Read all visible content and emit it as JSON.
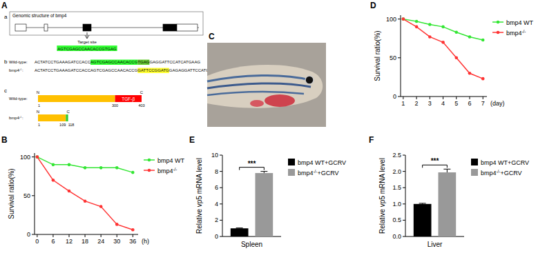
{
  "panel_labels": [
    "A",
    "B",
    "C",
    "D",
    "E",
    "F"
  ],
  "panel_a": {
    "subpanels": [
      "a",
      "b",
      "c"
    ],
    "gene": {
      "title": "Genomic structure of bmp4",
      "target_label": "Target site",
      "target_seq": "AGTCGAGCCAACACCGTGAG"
    },
    "sequences": [
      {
        "label": "Wild-type:",
        "segments": [
          {
            "text": "ACTATCCTGAAAGATCCACC"
          },
          {
            "text": "AGTCGAGCCAACACCG",
            "highlight": "#33ff33"
          },
          {
            "text": "TGAG",
            "highlight": "#66cc33"
          },
          {
            "text": "GAGGATTCCATCATGAAG"
          }
        ]
      },
      {
        "label": "bmp4-/-:",
        "segments": [
          {
            "text": "ACTATCCTGAAAGATCCACCAGTCGAGCCAACACCG"
          },
          {
            "text": "GATTCCGGATG",
            "highlight": "#ffff33"
          },
          {
            "text": "GAGAGGATTCCATCATGAA"
          }
        ]
      }
    ],
    "proteins": [
      {
        "label": "Wild-type:",
        "ends": [
          "N",
          "C"
        ],
        "ticks": [
          1,
          300,
          403
        ],
        "segments": [
          {
            "start": 1,
            "end": 300,
            "color": "#ffc000"
          },
          {
            "start": 300,
            "end": 403,
            "color": "#ff0000",
            "label": "TGF-β"
          }
        ]
      },
      {
        "label": "bmp4-/-:",
        "ends": [
          "N",
          "C"
        ],
        "ticks": [
          1,
          109,
          118
        ],
        "segments": [
          {
            "start": 1,
            "end": 109,
            "color": "#ffc000"
          },
          {
            "start": 109,
            "end": 118,
            "color": "#33cc33"
          }
        ]
      }
    ]
  },
  "chart_data": [
    {
      "type": "line",
      "x": [
        0,
        6,
        12,
        18,
        24,
        30,
        36
      ],
      "xlim": [
        -1,
        38
      ],
      "xticks": [
        0,
        6,
        12,
        18,
        24,
        30,
        36
      ],
      "ylim": [
        0,
        105
      ],
      "yticks": [
        0,
        50,
        100
      ],
      "x_label": "(h)",
      "y_label": "Survival ratio(%)",
      "grid": false,
      "legend": "right",
      "marker": "circle",
      "series": [
        {
          "name": "bmp4 WT",
          "color": "#33e633",
          "values": [
            100,
            90,
            90,
            86,
            86,
            86,
            80
          ]
        },
        {
          "name": "bmp4-/-",
          "color": "#ff3333",
          "values": [
            100,
            70,
            56,
            43,
            36,
            13,
            6
          ]
        }
      ]
    },
    {
      "type": "line",
      "x": [
        1,
        2,
        3,
        4,
        5,
        6,
        7
      ],
      "xlim": [
        0.8,
        7.3
      ],
      "xticks": [
        1,
        2,
        3,
        4,
        5,
        6,
        7
      ],
      "ylim": [
        0,
        105
      ],
      "yticks": [
        0,
        50,
        100
      ],
      "x_label": "(day)",
      "y_label": "Survival ratio(%)",
      "grid": false,
      "legend": "right",
      "marker": "circle",
      "series": [
        {
          "name": "bmp4 WT",
          "color": "#33e633",
          "values": [
            100,
            97,
            93,
            90,
            83,
            77,
            73
          ]
        },
        {
          "name": "bmp4-/-",
          "color": "#ff3333",
          "values": [
            100,
            90,
            77,
            70,
            50,
            30,
            23
          ]
        }
      ]
    },
    {
      "type": "bar",
      "categories": [
        null
      ],
      "x_label": "Spleen",
      "y_label": "Relative vp5 mRNA level",
      "ylim": [
        0,
        10
      ],
      "yticks": [
        0,
        2,
        4,
        6,
        8,
        10
      ],
      "grid": false,
      "legend": "right",
      "annotations": [
        "***"
      ],
      "series": [
        {
          "name": "bmp4 WT+GCRV",
          "color": "#000000",
          "values": [
            1
          ],
          "errors": [
            0.05
          ]
        },
        {
          "name": "bmp4-/-+GCRV",
          "color": "#999999",
          "values": [
            7.8
          ],
          "errors": [
            0.2
          ]
        }
      ]
    },
    {
      "type": "bar",
      "categories": [
        null
      ],
      "x_label": "Liver",
      "y_label": "Relative vp5 mRNA level",
      "ylim": [
        0,
        2.5
      ],
      "yticks": [
        {
          "value": 0,
          "label": "0.0"
        },
        0.5,
        {
          "value": 1,
          "label": "1.0"
        },
        1.5,
        {
          "value": 2,
          "label": "2.0"
        },
        2.5
      ],
      "grid": false,
      "legend": "right",
      "annotations": [
        "***"
      ],
      "series": [
        {
          "name": "bmp4 WT+GCRV",
          "color": "#000000",
          "values": [
            1
          ],
          "errors": [
            0.02
          ]
        },
        {
          "name": "bmp4-/-+GCRV",
          "color": "#999999",
          "values": [
            1.97
          ],
          "errors": [
            0.1
          ]
        }
      ]
    }
  ]
}
